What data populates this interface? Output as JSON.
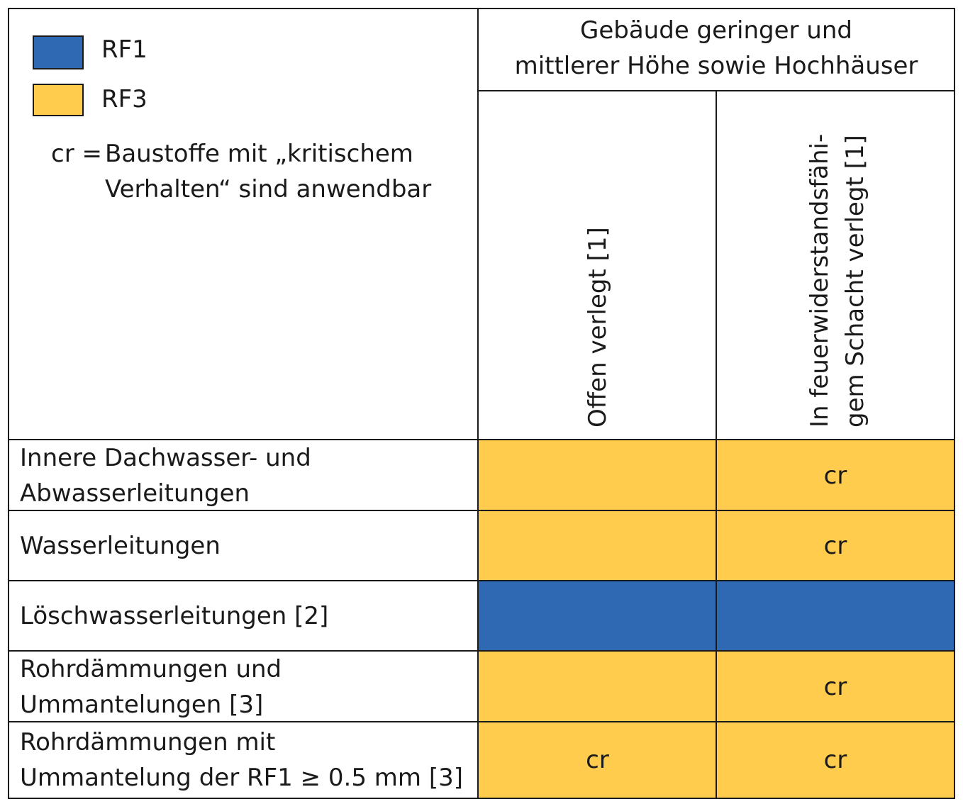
{
  "legend": {
    "items": [
      {
        "label": "RF1",
        "color": "#2f69b3"
      },
      {
        "label": "RF3",
        "color": "#ffcc4d"
      }
    ],
    "note_key": "cr =",
    "note_line1": "Baustoffe mit „kritischem",
    "note_line2": "Verhalten“ sind anwendbar"
  },
  "header": {
    "group_line1": "Gebäude geringer und",
    "group_line2": "mittlerer Höhe sowie Hochhäuser",
    "col1": "Offen verlegt [1]",
    "col2_line1": "In feuerwiderstandsfähi-",
    "col2_line2": "gem Schacht verlegt [1]"
  },
  "rows": [
    {
      "label1": "Innere Dachwasser- und",
      "label2": "Abwasserleitungen",
      "c1_class": "RF3",
      "c1_text": "",
      "c2_class": "RF3",
      "c2_text": "cr"
    },
    {
      "label1": "Wasserleitungen",
      "label2": "",
      "c1_class": "RF3",
      "c1_text": "",
      "c2_class": "RF3",
      "c2_text": "cr"
    },
    {
      "label1": "Löschwasserleitungen [2]",
      "label2": "",
      "c1_class": "RF1",
      "c1_text": "",
      "c2_class": "RF1",
      "c2_text": ""
    },
    {
      "label1": "Rohrdämmungen und",
      "label2": "Ummantelungen [3]",
      "c1_class": "RF3",
      "c1_text": "",
      "c2_class": "RF3",
      "c2_text": "cr"
    },
    {
      "label1": "Rohrdämmungen mit",
      "label2": "Ummantelung der RF1 ≥ 0.5 mm [3]",
      "c1_class": "RF3",
      "c1_text": "cr",
      "c2_class": "RF3",
      "c2_text": "cr"
    }
  ]
}
